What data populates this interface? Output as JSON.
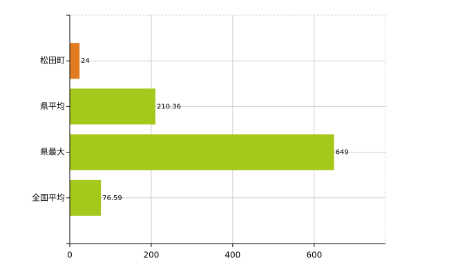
{
  "chart_data": {
    "type": "bar",
    "orientation": "horizontal",
    "categories": [
      "松田町",
      "県平均",
      "県最大",
      "全国平均"
    ],
    "values": [
      24,
      210.36,
      649,
      76.59
    ],
    "colors": [
      "#e07b20",
      "#a5c81c",
      "#a5c81c",
      "#a5c81c"
    ],
    "xlim": [
      0,
      775
    ],
    "xticks": [
      0,
      200,
      400,
      600
    ],
    "grid": true
  }
}
